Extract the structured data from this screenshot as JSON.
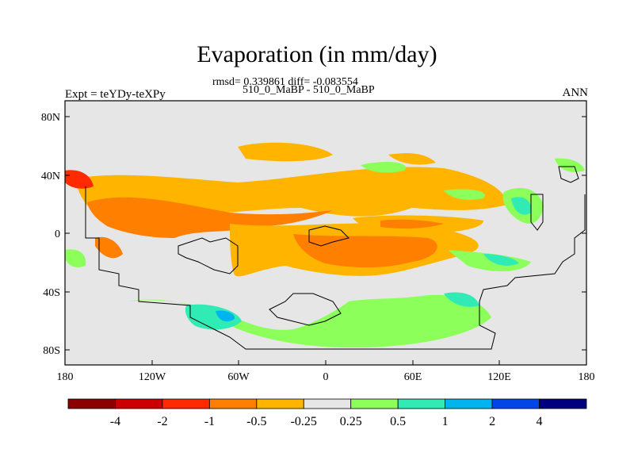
{
  "title": "Evaporation (in mm/day)",
  "stats": "rmsd= 0.339861 diff= -0.083554",
  "case": "510_0_MaBP - 510_0_MaBP",
  "expt": "Expt = teYDy-teXPy",
  "season": "ANN",
  "lat_ticks": [
    "80N",
    "40N",
    "0",
    "40S",
    "80S"
  ],
  "lon_ticks": [
    "180",
    "120W",
    "60W",
    "0",
    "60E",
    "120E",
    "180"
  ],
  "colorbar": {
    "labels": [
      "-4",
      "-2",
      "-1",
      "-0.5",
      "-0.25",
      "0.25",
      "0.5",
      "1",
      "2",
      "4"
    ],
    "colors": [
      "#8b0000",
      "#cc0000",
      "#ff2a00",
      "#ff7f00",
      "#ffb400",
      "#e6e6e6",
      "#8cff5a",
      "#30ebb4",
      "#00b4f0",
      "#0046e6",
      "#00007f"
    ]
  }
}
